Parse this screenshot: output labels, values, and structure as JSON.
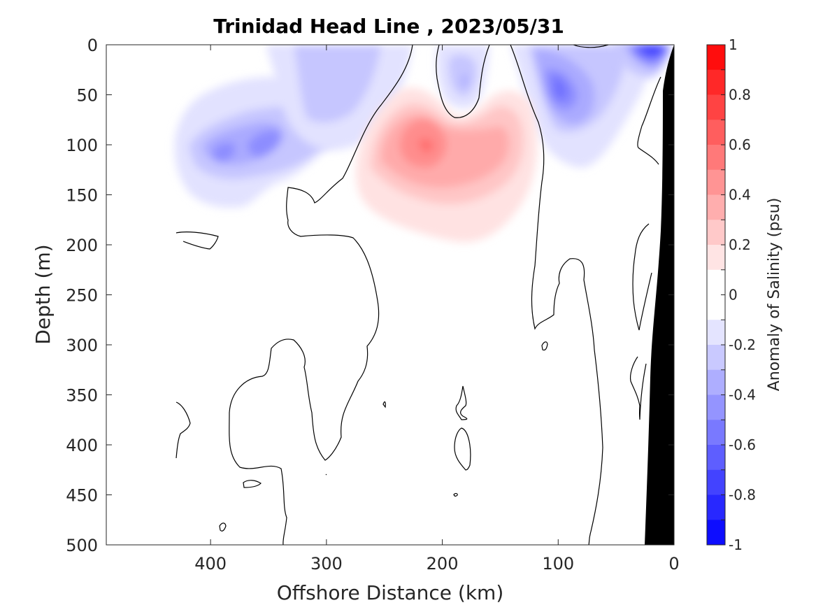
{
  "chart_data": {
    "type": "heatmap",
    "title": "Trinidad Head Line , 2023/05/31",
    "xlabel": "Offshore Distance (km)",
    "ylabel": "Depth (m)",
    "xlim": [
      490,
      0
    ],
    "ylim": [
      0,
      500
    ],
    "x_ticks": [
      400,
      300,
      200,
      100,
      0
    ],
    "y_ticks": [
      0,
      50,
      100,
      150,
      200,
      250,
      300,
      350,
      400,
      450,
      500
    ],
    "colorbar": {
      "label": "Anomaly of Salinity (psu)",
      "range": [
        -1,
        1
      ],
      "step": 0.1,
      "ticks": [
        1,
        0.8,
        0.6,
        0.4,
        0.2,
        0,
        -0.2,
        -0.4,
        -0.6,
        -0.8,
        -1
      ],
      "colormap": "blue-white-red",
      "neg_color": "#0000ff",
      "pos_color": "#ff0000"
    },
    "features": [
      {
        "sign": "negative",
        "center_km": 360,
        "center_depth_m": 100,
        "min_anomaly": -0.5
      },
      {
        "sign": "negative",
        "center_km": 290,
        "center_depth_m": 30,
        "min_anomaly": -0.3
      },
      {
        "sign": "negative",
        "center_km": 180,
        "center_depth_m": 40,
        "min_anomaly": -0.3
      },
      {
        "sign": "negative",
        "center_km": 105,
        "center_depth_m": 40,
        "min_anomaly": -0.6
      },
      {
        "sign": "negative",
        "center_km": 20,
        "center_depth_m": 5,
        "min_anomaly": -0.8
      },
      {
        "sign": "positive",
        "center_km": 215,
        "center_depth_m": 100,
        "max_anomaly": 0.6
      }
    ],
    "bathymetry_color": "#000000"
  }
}
